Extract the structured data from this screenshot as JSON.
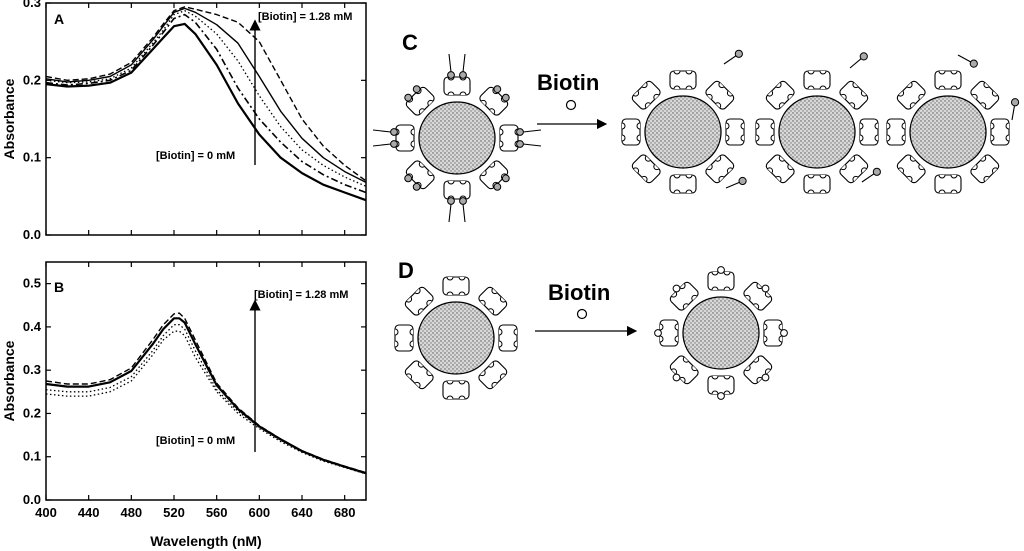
{
  "figure_labels": {
    "panel_c": "C",
    "panel_d": "D",
    "biotin_c": "Biotin",
    "biotin_d": "Biotin"
  },
  "chart_data": [
    {
      "type": "line",
      "panel_label": "A",
      "xlabel": "",
      "ylabel": "Absorbance",
      "xlim": [
        400,
        700
      ],
      "ylim": [
        0.0,
        0.3
      ],
      "yticks": [
        "0.0",
        "0.1",
        "0.2",
        "0.3"
      ],
      "annotations": {
        "top": "[Biotin] = 1.28 mM",
        "bottom": "[Biotin] = 0 mM"
      },
      "series": [
        {
          "style": "solid-thick",
          "x": [
            400,
            420,
            440,
            460,
            480,
            500,
            510,
            520,
            530,
            540,
            560,
            580,
            600,
            620,
            640,
            660,
            680,
            700
          ],
          "y": [
            0.195,
            0.192,
            0.193,
            0.197,
            0.21,
            0.24,
            0.255,
            0.27,
            0.273,
            0.26,
            0.22,
            0.17,
            0.13,
            0.1,
            0.08,
            0.065,
            0.055,
            0.045
          ]
        },
        {
          "style": "dash-dot",
          "x": [
            400,
            420,
            440,
            460,
            480,
            500,
            510,
            520,
            530,
            540,
            560,
            580,
            600,
            620,
            640,
            660,
            680,
            700
          ],
          "y": [
            0.197,
            0.194,
            0.196,
            0.2,
            0.213,
            0.245,
            0.262,
            0.28,
            0.285,
            0.275,
            0.24,
            0.19,
            0.15,
            0.12,
            0.095,
            0.078,
            0.065,
            0.055
          ]
        },
        {
          "style": "dotted",
          "x": [
            400,
            420,
            440,
            460,
            480,
            500,
            510,
            520,
            530,
            540,
            560,
            580,
            600,
            620,
            640,
            660,
            680,
            700
          ],
          "y": [
            0.2,
            0.197,
            0.198,
            0.202,
            0.216,
            0.248,
            0.265,
            0.285,
            0.29,
            0.283,
            0.26,
            0.225,
            0.18,
            0.14,
            0.11,
            0.09,
            0.075,
            0.063
          ]
        },
        {
          "style": "solid-thin",
          "x": [
            400,
            420,
            440,
            460,
            480,
            500,
            510,
            520,
            530,
            540,
            560,
            580,
            600,
            620,
            640,
            660,
            680,
            700
          ],
          "y": [
            0.202,
            0.198,
            0.2,
            0.205,
            0.22,
            0.252,
            0.27,
            0.288,
            0.293,
            0.288,
            0.272,
            0.248,
            0.205,
            0.16,
            0.125,
            0.1,
            0.082,
            0.068
          ]
        },
        {
          "style": "dashed",
          "x": [
            400,
            420,
            440,
            460,
            480,
            500,
            510,
            520,
            530,
            540,
            560,
            580,
            600,
            620,
            640,
            660,
            680,
            700
          ],
          "y": [
            0.205,
            0.2,
            0.202,
            0.208,
            0.223,
            0.255,
            0.273,
            0.29,
            0.295,
            0.292,
            0.285,
            0.275,
            0.25,
            0.2,
            0.15,
            0.115,
            0.09,
            0.07
          ]
        }
      ]
    },
    {
      "type": "line",
      "panel_label": "B",
      "xlabel": "Wavelength (nM)",
      "ylabel": "Absorbance",
      "xlim": [
        400,
        700
      ],
      "ylim": [
        0.0,
        0.55
      ],
      "xticks": [
        400,
        440,
        480,
        520,
        560,
        600,
        640,
        680
      ],
      "yticks": [
        "0.0",
        "0.1",
        "0.2",
        "0.3",
        "0.4",
        "0.5"
      ],
      "annotations": {
        "top": "[Biotin] = 1.28 mM",
        "bottom": "[Biotin] = 0 mM"
      },
      "series": [
        {
          "style": "dotted",
          "x": [
            400,
            420,
            440,
            460,
            480,
            500,
            510,
            520,
            525,
            530,
            540,
            560,
            580,
            600,
            620,
            640,
            660,
            680,
            700
          ],
          "y": [
            0.245,
            0.24,
            0.24,
            0.25,
            0.275,
            0.335,
            0.37,
            0.39,
            0.39,
            0.38,
            0.33,
            0.25,
            0.2,
            0.165,
            0.135,
            0.11,
            0.09,
            0.075,
            0.06
          ]
        },
        {
          "style": "dotted",
          "x": [
            400,
            420,
            440,
            460,
            480,
            500,
            510,
            520,
            525,
            530,
            540,
            560,
            580,
            600,
            620,
            640,
            660,
            680,
            700
          ],
          "y": [
            0.255,
            0.25,
            0.25,
            0.26,
            0.285,
            0.345,
            0.38,
            0.405,
            0.405,
            0.395,
            0.345,
            0.255,
            0.205,
            0.168,
            0.138,
            0.112,
            0.092,
            0.076,
            0.061
          ]
        },
        {
          "style": "solid-thick",
          "x": [
            400,
            420,
            440,
            460,
            480,
            500,
            510,
            520,
            525,
            530,
            540,
            560,
            580,
            600,
            620,
            640,
            660,
            680,
            700
          ],
          "y": [
            0.268,
            0.262,
            0.262,
            0.272,
            0.298,
            0.36,
            0.395,
            0.42,
            0.42,
            0.41,
            0.36,
            0.265,
            0.21,
            0.17,
            0.14,
            0.113,
            0.093,
            0.077,
            0.062
          ]
        },
        {
          "style": "dashed",
          "x": [
            400,
            420,
            440,
            460,
            480,
            500,
            510,
            520,
            525,
            530,
            540,
            560,
            580,
            600,
            620,
            640,
            660,
            680,
            700
          ],
          "y": [
            0.275,
            0.268,
            0.268,
            0.278,
            0.305,
            0.37,
            0.405,
            0.43,
            0.432,
            0.42,
            0.37,
            0.27,
            0.213,
            0.172,
            0.141,
            0.114,
            0.094,
            0.078,
            0.063
          ]
        }
      ]
    }
  ]
}
